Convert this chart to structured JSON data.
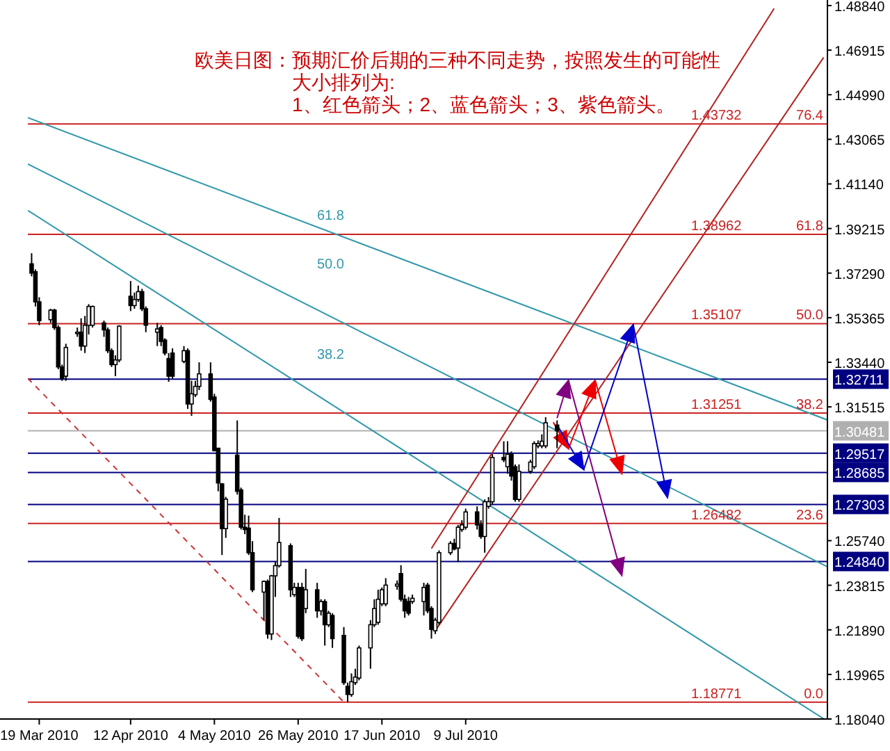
{
  "chart_data": {
    "type": "candlestick",
    "title": "欧美日图：预期汇价后期的三种不同走势，按照发生的可能性",
    "subtitle": "大小排列为:",
    "annotations": [
      "1、红色箭头；2、蓝色箭头；3、紫色箭头。",
      "61.8",
      "50.0",
      "38.2",
      {
        "text": "76.4",
        "y": 1.43732
      },
      {
        "text": "61.8",
        "y": 1.38962
      },
      {
        "text": "50.0",
        "y": 1.35107
      },
      {
        "text": "38.2",
        "y": 1.31251
      },
      {
        "text": "23.6",
        "y": 1.26482
      },
      {
        "text": "0.0",
        "y": 1.18771
      }
    ],
    "x": [
      "2010-03-17",
      "2010-03-18",
      "2010-03-19",
      "2010-03-22",
      "2010-03-23",
      "2010-03-24",
      "2010-03-25",
      "2010-03-26",
      "2010-03-29",
      "2010-03-30",
      "2010-03-31",
      "2010-04-01",
      "2010-04-02",
      "2010-04-05",
      "2010-04-06",
      "2010-04-07",
      "2010-04-08",
      "2010-04-09",
      "2010-04-12",
      "2010-04-13",
      "2010-04-14",
      "2010-04-15",
      "2010-04-16",
      "2010-04-19",
      "2010-04-20",
      "2010-04-21",
      "2010-04-22",
      "2010-04-23",
      "2010-04-26",
      "2010-04-27",
      "2010-04-28",
      "2010-04-29",
      "2010-04-30",
      "2010-05-03",
      "2010-05-04",
      "2010-05-05",
      "2010-05-06",
      "2010-05-07",
      "2010-05-10",
      "2010-05-11",
      "2010-05-12",
      "2010-05-13",
      "2010-05-14",
      "2010-05-17",
      "2010-05-18",
      "2010-05-19",
      "2010-05-20",
      "2010-05-21",
      "2010-05-24",
      "2010-05-25",
      "2010-05-26",
      "2010-05-27",
      "2010-05-28",
      "2010-05-31",
      "2010-06-01",
      "2010-06-02",
      "2010-06-03",
      "2010-06-04",
      "2010-06-07",
      "2010-06-08",
      "2010-06-09",
      "2010-06-10",
      "2010-06-11",
      "2010-06-14",
      "2010-06-15",
      "2010-06-16",
      "2010-06-17",
      "2010-06-18",
      "2010-06-21",
      "2010-06-22",
      "2010-06-23",
      "2010-06-24",
      "2010-06-25",
      "2010-06-28",
      "2010-06-29",
      "2010-06-30",
      "2010-07-01",
      "2010-07-02",
      "2010-07-05",
      "2010-07-06",
      "2010-07-07",
      "2010-07-08",
      "2010-07-09",
      "2010-07-12",
      "2010-07-13",
      "2010-07-14",
      "2010-07-15",
      "2010-07-16",
      "2010-07-19",
      "2010-07-20",
      "2010-07-21",
      "2010-07-22",
      "2010-07-23",
      "2010-07-26",
      "2010-07-27",
      "2010-07-28",
      "2010-07-29",
      "2010-07-30",
      "2010-08-02"
    ],
    "ohlc": [
      [
        1.3769,
        1.3815,
        1.3715,
        1.3729
      ],
      [
        1.3735,
        1.3745,
        1.3585,
        1.3605
      ],
      [
        1.3605,
        1.3625,
        1.3504,
        1.3524
      ],
      [
        1.3528,
        1.3575,
        1.3514,
        1.3569
      ],
      [
        1.3569,
        1.3575,
        1.3484,
        1.3494
      ],
      [
        1.3494,
        1.3504,
        1.3314,
        1.3324
      ],
      [
        1.3324,
        1.3334,
        1.3264,
        1.3274
      ],
      [
        1.3284,
        1.3424,
        1.3264,
        1.3408
      ],
      [
        1.3468,
        1.3494,
        1.3454,
        1.3474
      ],
      [
        1.3474,
        1.3534,
        1.3394,
        1.3414
      ],
      [
        1.3414,
        1.3544,
        1.3384,
        1.3504
      ],
      [
        1.3504,
        1.3595,
        1.3464,
        1.3585
      ],
      [
        1.3504,
        1.3589,
        1.3494,
        1.3585
      ],
      [
        1.3514,
        1.3524,
        1.3454,
        1.3484
      ],
      [
        1.3484,
        1.3494,
        1.3384,
        1.3394
      ],
      [
        1.3394,
        1.3404,
        1.3324,
        1.3334
      ],
      [
        1.3334,
        1.3374,
        1.3284,
        1.3354
      ],
      [
        1.3354,
        1.3504,
        1.3344,
        1.35
      ],
      [
        1.3629,
        1.3695,
        1.3565,
        1.3589
      ],
      [
        1.3589,
        1.3645,
        1.3575,
        1.3615
      ],
      [
        1.3615,
        1.3675,
        1.3605,
        1.3649
      ],
      [
        1.3649,
        1.3661,
        1.3565,
        1.3575
      ],
      [
        1.3575,
        1.3585,
        1.3474,
        1.3504
      ],
      [
        1.3474,
        1.3514,
        1.3414,
        1.3488
      ],
      [
        1.3494,
        1.3504,
        1.3414,
        1.3434
      ],
      [
        1.344,
        1.3448,
        1.3374,
        1.3384
      ],
      [
        1.336,
        1.3384,
        1.326,
        1.3284
      ],
      [
        1.3384,
        1.3404,
        1.3274,
        1.3284
      ],
      [
        1.3348,
        1.3414,
        1.334,
        1.3394
      ],
      [
        1.3394,
        1.3404,
        1.3143,
        1.3164
      ],
      [
        1.3164,
        1.3264,
        1.3113,
        1.3208
      ],
      [
        1.3204,
        1.3264,
        1.3194,
        1.324
      ],
      [
        1.324,
        1.3344,
        1.3224,
        1.3294
      ],
      [
        1.3294,
        1.3344,
        1.3174,
        1.3184
      ],
      [
        1.3194,
        1.3208,
        1.2959,
        1.2963
      ],
      [
        1.2973,
        1.2973,
        1.2787,
        1.2823
      ],
      [
        1.2819,
        1.2823,
        1.2512,
        1.2626
      ],
      [
        1.2626,
        1.2763,
        1.2586,
        1.2753
      ],
      [
        1.2943,
        1.3093,
        1.2773,
        1.2787
      ],
      [
        1.2793,
        1.2803,
        1.2622,
        1.2632
      ],
      [
        1.2632,
        1.2686,
        1.2602,
        1.2622
      ],
      [
        1.2628,
        1.2682,
        1.2512,
        1.2522
      ],
      [
        1.2522,
        1.2572,
        1.2352,
        1.2362
      ],
      [
        1.2352,
        1.2402,
        1.2231,
        1.2398
      ],
      [
        1.2398,
        1.2406,
        1.2151,
        1.2171
      ],
      [
        1.2171,
        1.2426,
        1.2145,
        1.2422
      ],
      [
        1.2422,
        1.2482,
        1.2331,
        1.2466
      ],
      [
        1.2466,
        1.2672,
        1.2458,
        1.2566
      ],
      [
        1.2552,
        1.2562,
        1.2331,
        1.2362
      ],
      [
        1.2341,
        1.2392,
        1.2331,
        1.2372
      ],
      [
        1.2372,
        1.2392,
        1.2151,
        1.2161
      ],
      [
        1.2372,
        1.2392,
        1.2141,
        1.2151
      ],
      [
        1.2281,
        1.2452,
        1.2261,
        1.2362
      ],
      [
        1.2362,
        1.2392,
        1.2241,
        1.2271
      ],
      [
        1.2271,
        1.2321,
        1.2251,
        1.2311
      ],
      [
        1.2311,
        1.2321,
        1.2121,
        1.2211
      ],
      [
        1.2211,
        1.2271,
        1.2201,
        1.2261
      ],
      [
        1.2251,
        1.2261,
        1.2111,
        1.2151
      ],
      [
        1.2165,
        1.2201,
        1.1951,
        1.1961
      ],
      [
        1.1945,
        1.1961,
        1.1877,
        1.191
      ],
      [
        1.191,
        1.2001,
        1.19,
        1.1965
      ],
      [
        1.1961,
        1.2021,
        1.1951,
        1.1985
      ],
      [
        1.1981,
        1.2121,
        1.1971,
        1.2111
      ],
      [
        1.2111,
        1.2231,
        1.2021,
        1.2211
      ],
      [
        1.2211,
        1.2321,
        1.2201,
        1.2281
      ],
      [
        1.2221,
        1.2362,
        1.2211,
        1.2321
      ],
      [
        1.2301,
        1.2372,
        1.2291,
        1.2362
      ],
      [
        1.2301,
        1.2412,
        1.2291,
        1.2382
      ],
      [
        1.2378,
        1.2402,
        1.2362,
        1.2386
      ],
      [
        1.2432,
        1.2468,
        1.2311,
        1.2321
      ],
      [
        1.2321,
        1.2341,
        1.2241,
        1.2271
      ],
      [
        1.2311,
        1.2331,
        1.2251,
        1.2261
      ],
      [
        1.2311,
        1.2341,
        1.2301,
        1.2325
      ],
      [
        1.2311,
        1.2392,
        1.2251,
        1.2372
      ],
      [
        1.2382,
        1.2392,
        1.2261,
        1.2271
      ],
      [
        1.2281,
        1.2291,
        1.2151,
        1.2191
      ],
      [
        1.2185,
        1.2241,
        1.2171,
        1.2231
      ],
      [
        1.2221,
        1.2532,
        1.2211,
        1.2522
      ],
      [
        1.2522,
        1.2572,
        1.2512,
        1.2562
      ],
      [
        1.2562,
        1.2582,
        1.2532,
        1.2538
      ],
      [
        1.2542,
        1.2642,
        1.2482,
        1.2632
      ],
      [
        1.2622,
        1.2662,
        1.2612,
        1.2642
      ],
      [
        1.2632,
        1.2712,
        1.2622,
        1.2698
      ],
      [
        1.2698,
        1.2722,
        1.2622,
        1.2642
      ],
      [
        1.2642,
        1.2662,
        1.2582,
        1.2592
      ],
      [
        1.2592,
        1.2752,
        1.2522,
        1.2742
      ],
      [
        1.2722,
        1.2762,
        1.2712,
        1.2742
      ],
      [
        1.2742,
        1.2947,
        1.2732,
        1.2933
      ],
      [
        1.2933,
        1.3003,
        1.2913,
        1.2923
      ],
      [
        1.2893,
        1.3003,
        1.2863,
        1.2947
      ],
      [
        1.2947,
        1.2959,
        1.2833,
        1.2853
      ],
      [
        1.2893,
        1.2903,
        1.2742,
        1.2752
      ],
      [
        1.2752,
        1.2903,
        1.2742,
        1.2873
      ],
      [
        1.2873,
        1.2923,
        1.2863,
        1.2913
      ],
      [
        1.2893,
        1.3003,
        1.2883,
        1.2993
      ],
      [
        1.2983,
        1.3007,
        1.2973,
        1.2993
      ],
      [
        1.2983,
        1.3033,
        1.2973,
        1.3003
      ],
      [
        1.2983,
        1.3107,
        1.2973,
        1.3083
      ],
      [
        1.3073,
        1.3093,
        1.2973,
        1.3048
      ]
    ],
    "series": [
      {
        "type": "line",
        "color": "#3399aa",
        "x": [
          "2010-03-16",
          "2010-10-12"
        ],
        "values": [
          1.44,
          1.3095
        ]
      },
      {
        "type": "line",
        "color": "#3399aa",
        "x": [
          "2010-03-16",
          "2010-10-12"
        ],
        "values": [
          1.42,
          1.2461
        ]
      },
      {
        "type": "line",
        "color": "#3399aa",
        "x": [
          "2010-03-16",
          "2010-10-11"
        ],
        "values": [
          1.4,
          1.1805
        ]
      },
      {
        "type": "line",
        "color": "#cc3333",
        "line_style": "dashed",
        "x": [
          "2010-03-16",
          "2010-06-07"
        ],
        "values": [
          1.3275,
          1.1877
        ]
      },
      {
        "type": "line",
        "color": "#b22222",
        "x": [
          "2010-06-30",
          "2010-09-28"
        ],
        "values": [
          1.254,
          1.4871
        ]
      },
      {
        "type": "line",
        "color": "#b22222",
        "x": [
          "2010-07-01",
          "2010-10-11"
        ],
        "values": [
          1.2185,
          1.466
        ]
      },
      {
        "type": "line",
        "color": "#800080",
        "x": [
          "2010-08-02",
          "2010-08-05",
          "2010-08-19"
        ],
        "values": [
          1.3103,
          1.3266,
          1.2424
        ]
      },
      {
        "type": "line",
        "color": "#ee0000",
        "x": [
          "2010-08-01",
          "2010-08-05",
          "2010-08-12",
          "2010-08-19"
        ],
        "values": [
          1.3085,
          1.2971,
          1.3266,
          1.2863
        ]
      },
      {
        "type": "line",
        "color": "#0000cc",
        "x": [
          "2010-08-02",
          "2010-08-09",
          "2010-08-22",
          "2010-08-31"
        ],
        "values": [
          1.3073,
          1.2881,
          1.3506,
          1.276
        ]
      }
    ],
    "ref_lines": [
      {
        "axis": "y",
        "value": 1.43732,
        "label": "1.43732",
        "color": "#cc2222"
      },
      {
        "axis": "y",
        "value": 1.38962,
        "label": "1.38962",
        "color": "#cc2222"
      },
      {
        "axis": "y",
        "value": 1.35107,
        "label": "1.35107",
        "color": "#cc2222"
      },
      {
        "axis": "y",
        "value": 1.31251,
        "label": "1.31251",
        "color": "#cc2222"
      },
      {
        "axis": "y",
        "value": 1.26482,
        "label": "1.26482",
        "color": "#cc2222"
      },
      {
        "axis": "y",
        "value": 1.18771,
        "label": "1.18771",
        "color": "#cc2222"
      },
      {
        "axis": "y",
        "value": 1.32711,
        "label": "1.32711",
        "color": "#000080"
      },
      {
        "axis": "y",
        "value": 1.30481,
        "label": "1.30481",
        "color": "#b0b0b0"
      },
      {
        "axis": "y",
        "value": 1.29517,
        "label": "1.29517",
        "color": "#000080"
      },
      {
        "axis": "y",
        "value": 1.28685,
        "label": "1.28685",
        "color": "#000080"
      },
      {
        "axis": "y",
        "value": 1.27303,
        "label": "1.27303",
        "color": "#000080"
      },
      {
        "axis": "y",
        "value": 1.2484,
        "label": "1.24840",
        "color": "#000080"
      }
    ],
    "xlim": [
      "2010-03-16",
      "2010-10-12"
    ],
    "xticks": [
      {
        "value": "2010-03-19",
        "label": "19 Mar 2010"
      },
      {
        "value": "2010-04-12",
        "label": "12 Apr 2010"
      },
      {
        "value": "2010-05-04",
        "label": "4 May 2010"
      },
      {
        "value": "2010-05-26",
        "label": "26 May 2010"
      },
      {
        "value": "2010-06-17",
        "label": "17 Jun 2010"
      },
      {
        "value": "2010-07-09",
        "label": "9 Jul 2010"
      }
    ],
    "ylim": [
      1.1804,
      1.4908
    ],
    "yticks": [
      {
        "value": 1.4884,
        "label": "1.48840"
      },
      1.46915,
      {
        "value": 1.4499,
        "label": "1.44990"
      },
      1.43065,
      {
        "value": 1.4114,
        "label": "1.41140"
      },
      1.39215,
      {
        "value": 1.3729,
        "label": "1.37290"
      },
      1.35365,
      {
        "value": 1.3344,
        "label": "1.33440"
      },
      1.31515,
      {
        "value": 1.2574,
        "label": "1.25740"
      },
      1.23815,
      {
        "value": 1.2189,
        "label": "1.21890"
      },
      1.19965,
      {
        "value": 1.1804,
        "label": "1.18040"
      }
    ]
  }
}
